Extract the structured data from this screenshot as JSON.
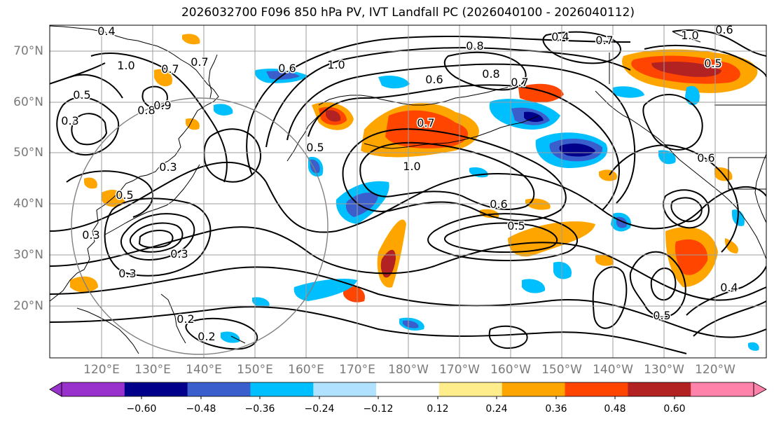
{
  "title": "2026032700 F096 850 hPa PV, IVT Landfall PC (2026040100 - 2026040112)",
  "lat_labels": [
    "70°N",
    "60°N",
    "50°N",
    "40°N",
    "30°N",
    "20°N"
  ],
  "lon_labels": [
    "120°E",
    "130°E",
    "140°E",
    "150°E",
    "160°E",
    "170°E",
    "180°W",
    "170°W",
    "160°W",
    "150°W",
    "140°W",
    "130°W",
    "120°W"
  ],
  "colorbar": {
    "ticks": [
      "−0.60",
      "−0.48",
      "−0.36",
      "−0.24",
      "−0.12",
      "0.12",
      "0.24",
      "0.36",
      "0.48",
      "0.60"
    ],
    "colors": [
      "#9932cc",
      "#00008b",
      "#3a5fcd",
      "#00bfff",
      "#b0e2ff",
      "#ffffff",
      "#ffec8b",
      "#ffa500",
      "#ff4500",
      "#b22222",
      "#ff82ab"
    ]
  },
  "contour_labels": [
    "0.4",
    "1.0",
    "0.7",
    "0.5",
    "0.3",
    "0.8",
    "0.9",
    "0.6",
    "0.7",
    "1.0",
    "0.6",
    "0.4",
    "0.3",
    "0.5",
    "0.3",
    "0.2",
    "0.2",
    "0.6",
    "0.5",
    "0.8",
    "1.0",
    "0.7",
    "0.5",
    "0.6",
    "0.8",
    "0.7",
    "1.0",
    "0.6",
    "0.7",
    "0.5",
    "0.3",
    "0.5",
    "0.4",
    "0.3"
  ],
  "map_colors": {
    "contour": "#000000",
    "coast": "#000000",
    "grid": "#9e9e9e",
    "circle": "#808080"
  }
}
